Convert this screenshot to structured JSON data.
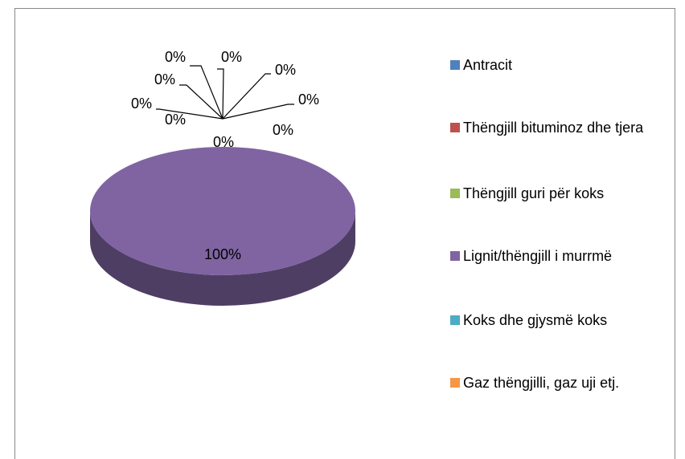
{
  "chart_data": {
    "type": "pie",
    "categories": [
      "Antracit",
      "Thëngjill bituminoz dhe tjera",
      "Thëngjill guri për koks",
      "Lignit/thëngjill i murrmë",
      "Koks dhe gjysmë koks",
      "Gaz thëngjilli, gaz uji etj.",
      null,
      null,
      null,
      null
    ],
    "values": [
      0,
      0,
      0,
      100,
      0,
      0,
      0,
      0,
      0,
      0
    ],
    "value_labels": [
      "0%",
      "0%",
      "0%",
      "100%",
      "0%",
      "0%",
      "0%",
      "0%",
      "0%",
      "0%"
    ],
    "colors": [
      "#4f81bd",
      "#c0504d",
      "#9bbb59",
      "#8064a2",
      "#4bacc6",
      "#f79646",
      "#2c4d75",
      "#772c2a",
      "#5f7530",
      "#4d3b62"
    ],
    "legend": "right"
  }
}
